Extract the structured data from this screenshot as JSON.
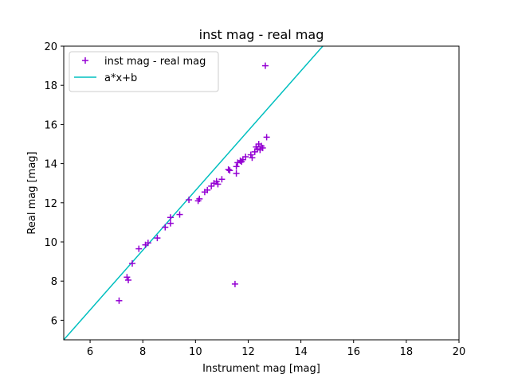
{
  "chart_data": {
    "type": "scatter",
    "title": "inst mag - real mag",
    "xlabel": "Instrument mag [mag]",
    "ylabel": "Real mag [mag]",
    "xlim": [
      5,
      20
    ],
    "ylim": [
      5,
      20
    ],
    "xticks": [
      6,
      8,
      10,
      12,
      14,
      16,
      18,
      20
    ],
    "yticks": [
      6,
      8,
      10,
      12,
      14,
      16,
      18,
      20
    ],
    "grid": false,
    "legend_position": "top-left",
    "colors": {
      "points": "#9400d3",
      "line": "#00bfbf"
    },
    "series": [
      {
        "name": "inst mag - real mag",
        "kind": "scatter",
        "marker": "+",
        "points": [
          [
            7.1,
            7.0
          ],
          [
            7.4,
            8.2
          ],
          [
            7.45,
            8.05
          ],
          [
            7.6,
            8.9
          ],
          [
            7.85,
            9.65
          ],
          [
            8.1,
            9.85
          ],
          [
            8.2,
            9.95
          ],
          [
            8.55,
            10.2
          ],
          [
            8.85,
            10.75
          ],
          [
            9.05,
            10.95
          ],
          [
            9.05,
            11.25
          ],
          [
            9.4,
            11.4
          ],
          [
            9.75,
            12.15
          ],
          [
            10.1,
            12.1
          ],
          [
            10.15,
            12.2
          ],
          [
            10.35,
            12.55
          ],
          [
            10.45,
            12.65
          ],
          [
            10.6,
            12.85
          ],
          [
            10.7,
            13.0
          ],
          [
            10.8,
            13.1
          ],
          [
            10.85,
            12.95
          ],
          [
            11.0,
            13.2
          ],
          [
            11.25,
            13.7
          ],
          [
            11.3,
            13.65
          ],
          [
            11.55,
            13.5
          ],
          [
            11.55,
            13.85
          ],
          [
            11.6,
            14.05
          ],
          [
            11.7,
            14.15
          ],
          [
            11.75,
            14.1
          ],
          [
            11.8,
            14.2
          ],
          [
            11.9,
            14.35
          ],
          [
            12.1,
            14.45
          ],
          [
            12.15,
            14.3
          ],
          [
            12.25,
            14.6
          ],
          [
            12.3,
            14.85
          ],
          [
            12.35,
            14.75
          ],
          [
            12.4,
            15.0
          ],
          [
            12.45,
            14.7
          ],
          [
            12.5,
            14.9
          ],
          [
            12.55,
            14.8
          ],
          [
            12.7,
            15.35
          ],
          [
            12.65,
            19.0
          ],
          [
            11.5,
            7.85
          ]
        ]
      },
      {
        "name": "a*x+b",
        "kind": "line",
        "points": [
          [
            5.0,
            5.0
          ],
          [
            14.83,
            20.0
          ]
        ]
      }
    ]
  }
}
